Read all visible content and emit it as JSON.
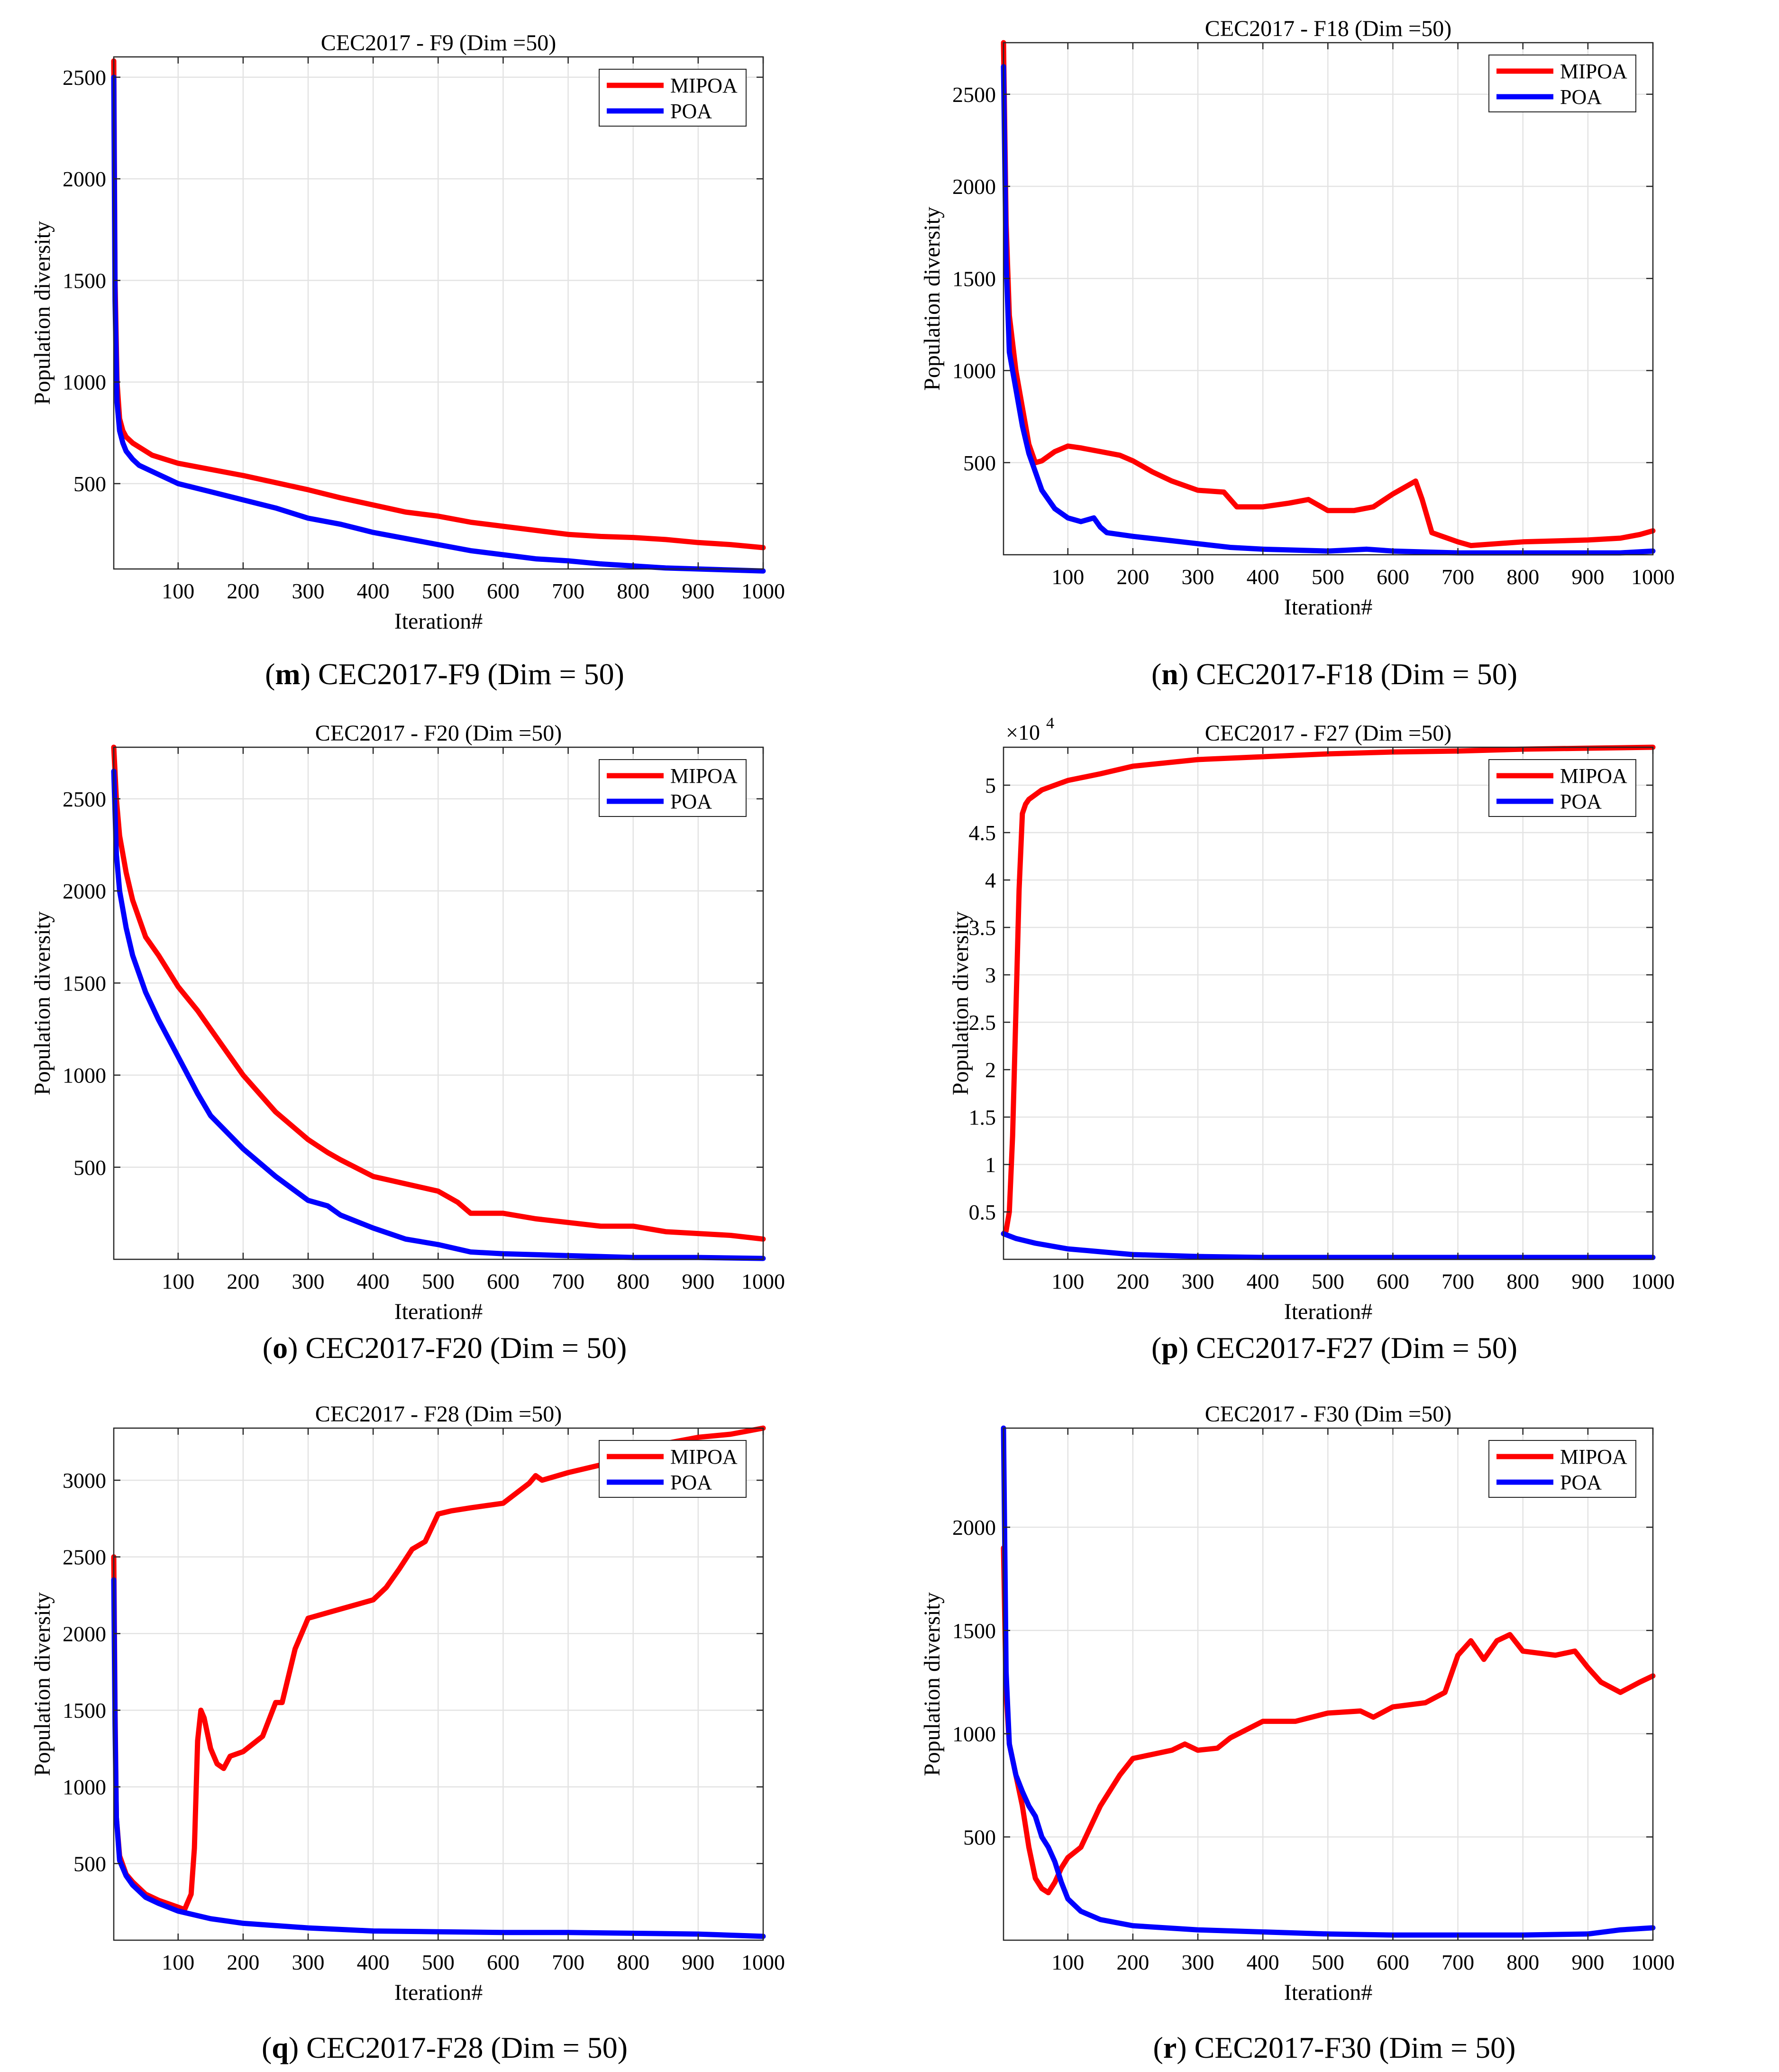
{
  "colors": {
    "MIPOA": "#ff0000",
    "POA": "#0000ff",
    "grid": "#e3e3e3",
    "axis": "#262626"
  },
  "chart_data": [
    {
      "type": "line",
      "panel": "m",
      "title": "CEC2017 - F9 (Dim =50)",
      "caption": {
        "letter": "m",
        "text": "CEC2017-F9 (Dim = 50)"
      },
      "xlabel": "Iteration#",
      "ylabel": "Population diversity",
      "xlim": [
        1,
        1000
      ],
      "ylim": [
        80,
        2600
      ],
      "xticks": [
        100,
        200,
        300,
        400,
        500,
        600,
        700,
        800,
        900,
        1000
      ],
      "yticks": [
        500,
        1000,
        1500,
        2000,
        2500
      ],
      "exponent": "",
      "legend": {
        "position": "top-right",
        "entries": [
          "MIPOA",
          "POA"
        ]
      },
      "grid": true,
      "series": [
        {
          "name": "MIPOA",
          "x": [
            1,
            3,
            6,
            10,
            15,
            20,
            30,
            40,
            60,
            80,
            100,
            150,
            200,
            250,
            300,
            350,
            400,
            450,
            500,
            550,
            600,
            650,
            700,
            750,
            800,
            850,
            900,
            950,
            1000
          ],
          "y": [
            2580,
            1500,
            1000,
            820,
            760,
            730,
            700,
            680,
            640,
            620,
            600,
            570,
            540,
            505,
            470,
            430,
            395,
            360,
            340,
            310,
            290,
            270,
            250,
            240,
            235,
            225,
            210,
            200,
            185
          ]
        },
        {
          "name": "POA",
          "x": [
            1,
            3,
            6,
            10,
            15,
            20,
            30,
            40,
            60,
            80,
            100,
            150,
            200,
            250,
            300,
            350,
            400,
            450,
            500,
            550,
            600,
            650,
            700,
            750,
            800,
            850,
            900,
            950,
            1000
          ],
          "y": [
            2500,
            1400,
            900,
            760,
            700,
            660,
            620,
            590,
            560,
            530,
            500,
            460,
            420,
            380,
            330,
            300,
            260,
            230,
            200,
            170,
            150,
            130,
            120,
            105,
            95,
            85,
            80,
            75,
            70
          ]
        }
      ]
    },
    {
      "type": "line",
      "panel": "n",
      "title": "CEC2017 - F18 (Dim =50)",
      "caption": {
        "letter": "n",
        "text": "CEC2017-F18 (Dim = 50)"
      },
      "xlabel": "Iteration#",
      "ylabel": "Population diversity",
      "xlim": [
        1,
        1000
      ],
      "ylim": [
        0,
        2780
      ],
      "xticks": [
        100,
        200,
        300,
        400,
        500,
        600,
        700,
        800,
        900,
        1000
      ],
      "yticks": [
        500,
        1000,
        1500,
        2000,
        2500
      ],
      "exponent": "",
      "legend": {
        "position": "top-right",
        "entries": [
          "MIPOA",
          "POA"
        ]
      },
      "grid": true,
      "series": [
        {
          "name": "MIPOA",
          "x": [
            1,
            5,
            10,
            20,
            30,
            40,
            50,
            60,
            80,
            100,
            120,
            150,
            180,
            200,
            230,
            260,
            300,
            340,
            360,
            400,
            440,
            470,
            500,
            540,
            570,
            600,
            620,
            635,
            645,
            660,
            700,
            720,
            760,
            800,
            850,
            900,
            950,
            980,
            1000
          ],
          "y": [
            2780,
            1800,
            1300,
            1000,
            800,
            600,
            500,
            510,
            560,
            590,
            580,
            560,
            540,
            510,
            450,
            400,
            350,
            340,
            260,
            260,
            280,
            300,
            240,
            240,
            260,
            330,
            370,
            400,
            300,
            120,
            70,
            50,
            60,
            70,
            75,
            80,
            90,
            110,
            130
          ]
        },
        {
          "name": "POA",
          "x": [
            1,
            5,
            10,
            20,
            30,
            40,
            50,
            60,
            70,
            80,
            100,
            120,
            140,
            150,
            160,
            180,
            200,
            250,
            300,
            350,
            400,
            500,
            560,
            600,
            700,
            800,
            900,
            950,
            1000
          ],
          "y": [
            2650,
            1600,
            1100,
            900,
            700,
            550,
            450,
            350,
            300,
            250,
            200,
            180,
            200,
            150,
            120,
            110,
            100,
            80,
            60,
            40,
            30,
            20,
            30,
            20,
            10,
            10,
            10,
            10,
            20
          ]
        }
      ]
    },
    {
      "type": "line",
      "panel": "o",
      "title": "CEC2017 - F20 (Dim =50)",
      "caption": {
        "letter": "o",
        "text": "CEC2017-F20 (Dim = 50)"
      },
      "xlabel": "Iteration#",
      "ylabel": "Population diversity",
      "xlim": [
        1,
        1000
      ],
      "ylim": [
        0,
        2780
      ],
      "xticks": [
        100,
        200,
        300,
        400,
        500,
        600,
        700,
        800,
        900,
        1000
      ],
      "yticks": [
        500,
        1000,
        1500,
        2000,
        2500
      ],
      "exponent": "",
      "legend": {
        "position": "top-right",
        "entries": [
          "MIPOA",
          "POA"
        ]
      },
      "grid": true,
      "series": [
        {
          "name": "MIPOA",
          "x": [
            1,
            5,
            10,
            20,
            30,
            40,
            50,
            70,
            100,
            130,
            150,
            200,
            250,
            300,
            330,
            350,
            400,
            450,
            500,
            530,
            550,
            600,
            650,
            700,
            750,
            800,
            850,
            900,
            950,
            1000
          ],
          "y": [
            2780,
            2500,
            2300,
            2100,
            1950,
            1850,
            1750,
            1650,
            1480,
            1350,
            1250,
            1000,
            800,
            650,
            580,
            540,
            450,
            410,
            370,
            310,
            250,
            250,
            220,
            200,
            180,
            180,
            150,
            140,
            130,
            110
          ]
        },
        {
          "name": "POA",
          "x": [
            1,
            5,
            10,
            20,
            30,
            40,
            50,
            70,
            100,
            130,
            150,
            200,
            250,
            300,
            330,
            350,
            400,
            450,
            500,
            550,
            600,
            700,
            800,
            900,
            1000
          ],
          "y": [
            2650,
            2200,
            2000,
            1800,
            1650,
            1550,
            1450,
            1300,
            1100,
            900,
            780,
            600,
            450,
            320,
            290,
            240,
            170,
            110,
            80,
            40,
            30,
            20,
            10,
            10,
            5
          ]
        }
      ]
    },
    {
      "type": "line",
      "panel": "p",
      "title": "CEC2017 - F27 (Dim =50)",
      "caption": {
        "letter": "p",
        "text": "CEC2017-F27 (Dim = 50)"
      },
      "xlabel": "Iteration#",
      "ylabel": "Population diversity",
      "xlim": [
        1,
        1000
      ],
      "ylim": [
        0,
        5.4
      ],
      "xticks": [
        100,
        200,
        300,
        400,
        500,
        600,
        700,
        800,
        900,
        1000
      ],
      "yticks": [
        0.5,
        1,
        1.5,
        2,
        2.5,
        3,
        3.5,
        4,
        4.5,
        5
      ],
      "exponent": "4",
      "legend": {
        "position": "top-right",
        "entries": [
          "MIPOA",
          "POA"
        ]
      },
      "grid": true,
      "series": [
        {
          "name": "MIPOA",
          "x": [
            1,
            5,
            10,
            15,
            20,
            25,
            30,
            35,
            40,
            50,
            60,
            80,
            100,
            150,
            200,
            300,
            400,
            500,
            600,
            700,
            800,
            900,
            1000
          ],
          "y": [
            0.27,
            0.3,
            0.5,
            1.3,
            2.6,
            3.9,
            4.7,
            4.8,
            4.85,
            4.9,
            4.95,
            5.0,
            5.05,
            5.12,
            5.2,
            5.27,
            5.3,
            5.33,
            5.35,
            5.36,
            5.38,
            5.39,
            5.4
          ]
        },
        {
          "name": "POA",
          "x": [
            1,
            20,
            50,
            100,
            150,
            200,
            300,
            400,
            500,
            600,
            700,
            800,
            900,
            1000
          ],
          "y": [
            0.27,
            0.22,
            0.17,
            0.11,
            0.08,
            0.05,
            0.03,
            0.02,
            0.02,
            0.02,
            0.02,
            0.02,
            0.02,
            0.02
          ]
        }
      ]
    },
    {
      "type": "line",
      "panel": "q",
      "title": "CEC2017 - F28 (Dim =50)",
      "caption": {
        "letter": "q",
        "text": "CEC2017-F28 (Dim = 50)"
      },
      "xlabel": "Iteration#",
      "ylabel": "Population diversity",
      "xlim": [
        1,
        1000
      ],
      "ylim": [
        0,
        3340
      ],
      "xticks": [
        100,
        200,
        300,
        400,
        500,
        600,
        700,
        800,
        900,
        1000
      ],
      "yticks": [
        500,
        1000,
        1500,
        2000,
        2500,
        3000
      ],
      "exponent": "",
      "legend": {
        "position": "top-right",
        "entries": [
          "MIPOA",
          "POA"
        ]
      },
      "grid": true,
      "series": [
        {
          "name": "MIPOA",
          "x": [
            1,
            3,
            5,
            10,
            20,
            30,
            50,
            70,
            90,
            110,
            120,
            125,
            130,
            135,
            140,
            150,
            160,
            170,
            180,
            200,
            230,
            250,
            260,
            280,
            300,
            350,
            400,
            420,
            440,
            460,
            480,
            500,
            520,
            550,
            600,
            640,
            650,
            660,
            700,
            750,
            800,
            850,
            900,
            950,
            1000
          ],
          "y": [
            2500,
            1500,
            800,
            550,
            430,
            380,
            300,
            260,
            230,
            200,
            300,
            600,
            1300,
            1500,
            1450,
            1250,
            1150,
            1120,
            1200,
            1230,
            1330,
            1550,
            1550,
            1900,
            2100,
            2160,
            2220,
            2300,
            2420,
            2550,
            2600,
            2780,
            2800,
            2820,
            2850,
            2980,
            3030,
            3000,
            3050,
            3100,
            3150,
            3240,
            3280,
            3300,
            3340
          ]
        },
        {
          "name": "POA",
          "x": [
            1,
            3,
            5,
            10,
            20,
            30,
            50,
            70,
            100,
            150,
            200,
            300,
            400,
            500,
            600,
            700,
            800,
            900,
            1000
          ],
          "y": [
            2350,
            1400,
            800,
            520,
            420,
            360,
            280,
            240,
            190,
            140,
            110,
            80,
            60,
            55,
            50,
            50,
            45,
            40,
            25
          ]
        }
      ]
    },
    {
      "type": "line",
      "panel": "r",
      "title": "CEC2017 - F30 (Dim =50)",
      "caption": {
        "letter": "r",
        "text": "CEC2017-F30 (Dim = 50)"
      },
      "xlabel": "Iteration#",
      "ylabel": "Population diversity",
      "xlim": [
        1,
        1000
      ],
      "ylim": [
        0,
        2480
      ],
      "xticks": [
        100,
        200,
        300,
        400,
        500,
        600,
        700,
        800,
        900,
        1000
      ],
      "yticks": [
        500,
        1000,
        1500,
        2000
      ],
      "exponent": "",
      "legend": {
        "position": "top-right",
        "entries": [
          "MIPOA",
          "POA"
        ]
      },
      "grid": true,
      "series": [
        {
          "name": "MIPOA",
          "x": [
            1,
            5,
            10,
            20,
            30,
            40,
            50,
            60,
            70,
            80,
            90,
            100,
            120,
            150,
            180,
            200,
            230,
            260,
            280,
            300,
            330,
            350,
            400,
            450,
            500,
            550,
            570,
            600,
            650,
            680,
            700,
            720,
            740,
            760,
            780,
            800,
            850,
            880,
            900,
            920,
            950,
            980,
            1000
          ],
          "y": [
            1900,
            1200,
            950,
            800,
            650,
            450,
            300,
            250,
            230,
            280,
            350,
            400,
            450,
            650,
            800,
            880,
            900,
            920,
            950,
            920,
            930,
            980,
            1060,
            1060,
            1100,
            1110,
            1080,
            1130,
            1150,
            1200,
            1380,
            1450,
            1360,
            1450,
            1480,
            1400,
            1380,
            1400,
            1320,
            1250,
            1200,
            1250,
            1280
          ]
        },
        {
          "name": "POA",
          "x": [
            1,
            5,
            10,
            20,
            30,
            40,
            50,
            60,
            70,
            80,
            90,
            100,
            120,
            150,
            200,
            300,
            400,
            500,
            600,
            700,
            800,
            900,
            950,
            1000
          ],
          "y": [
            2480,
            1300,
            950,
            800,
            720,
            650,
            600,
            500,
            450,
            380,
            280,
            200,
            140,
            100,
            70,
            50,
            40,
            30,
            25,
            25,
            25,
            30,
            50,
            60
          ]
        }
      ]
    }
  ]
}
